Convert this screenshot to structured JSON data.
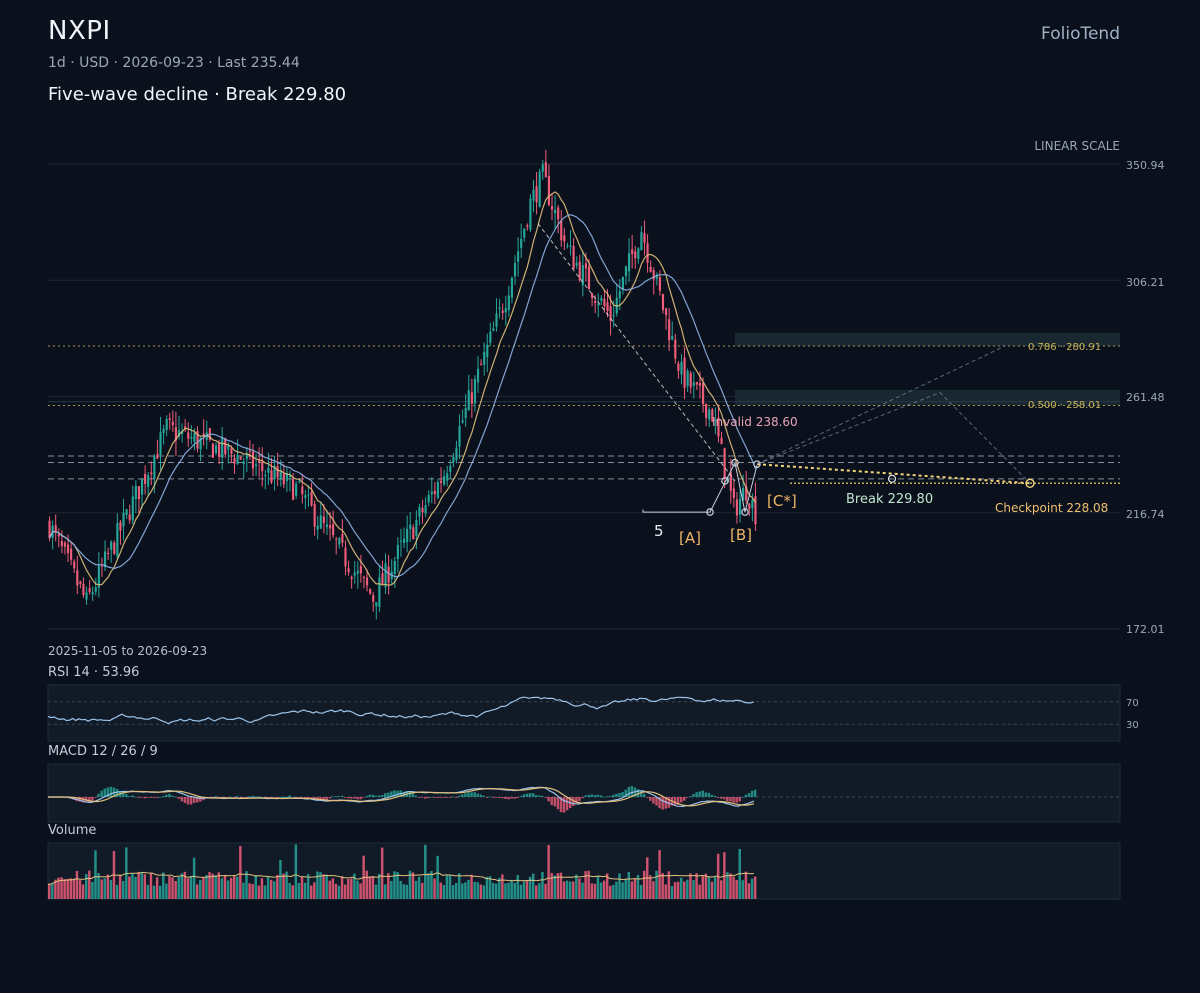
{
  "header": {
    "ticker": "NXPI",
    "meta": "1d · USD · 2026-09-23 · Last 235.44",
    "headline": "Five-wave decline · Break 229.80",
    "brand": "FolioTend"
  },
  "main_chart": {
    "scale_label": "LINEAR SCALE",
    "date_range": "2025-11-05 to 2026-09-23",
    "y_ticks": [
      "350.94",
      "306.21",
      "261.48",
      "216.74",
      "172.01"
    ],
    "fib_labels": [
      "0.786 · 280.91",
      "0.500 · 258.01"
    ],
    "annotations": {
      "invalid": "Invalid 238.60",
      "break": "Break 229.80",
      "checkpoint": "Checkpoint 228.08",
      "wave_5": "5",
      "wave_a": "[A]",
      "wave_b": "[B]",
      "wave_c": "[C*]"
    }
  },
  "rsi_panel": {
    "title": "RSI 14 · 53.96",
    "levels": [
      "70",
      "30"
    ]
  },
  "macd_panel": {
    "title": "MACD 12 / 26 / 9"
  },
  "volume_panel": {
    "title": "Volume"
  },
  "colors": {
    "up": "#26a69a",
    "down": "#ef5d7a",
    "ma_fast": "#e3c17c",
    "ma_slow": "#8fb3e8",
    "fib": "#c9b45a",
    "projection": "#f2d37a",
    "grid": "#1c2634"
  },
  "chart_data": {
    "type": "candlestick",
    "symbol": "NXPI",
    "interval": "1d",
    "currency": "USD",
    "x_start": "2025-11-05",
    "x_end": "2026-09-23",
    "ylim": [
      172.01,
      350.94
    ],
    "last_price": 235.44,
    "levels": {
      "invalid": 238.6,
      "break": 229.8,
      "checkpoint": 228.08,
      "fib_0786": 280.91,
      "fib_0500": 258.01
    },
    "swings": [
      {
        "label": "start",
        "price": 212
      },
      {
        "label": "low",
        "price": 182
      },
      {
        "label": "high",
        "price": 249
      },
      {
        "label": "low",
        "price": 184
      },
      {
        "label": "high",
        "price": 346
      },
      {
        "label": "high2",
        "price": 328
      },
      {
        "label": "5",
        "price": 218
      },
      {
        "label": "[A]",
        "price": 217
      },
      {
        "label": "[B]",
        "price": 221
      },
      {
        "label": "end",
        "price": 235.44
      }
    ],
    "rsi_last": 53.96
  }
}
